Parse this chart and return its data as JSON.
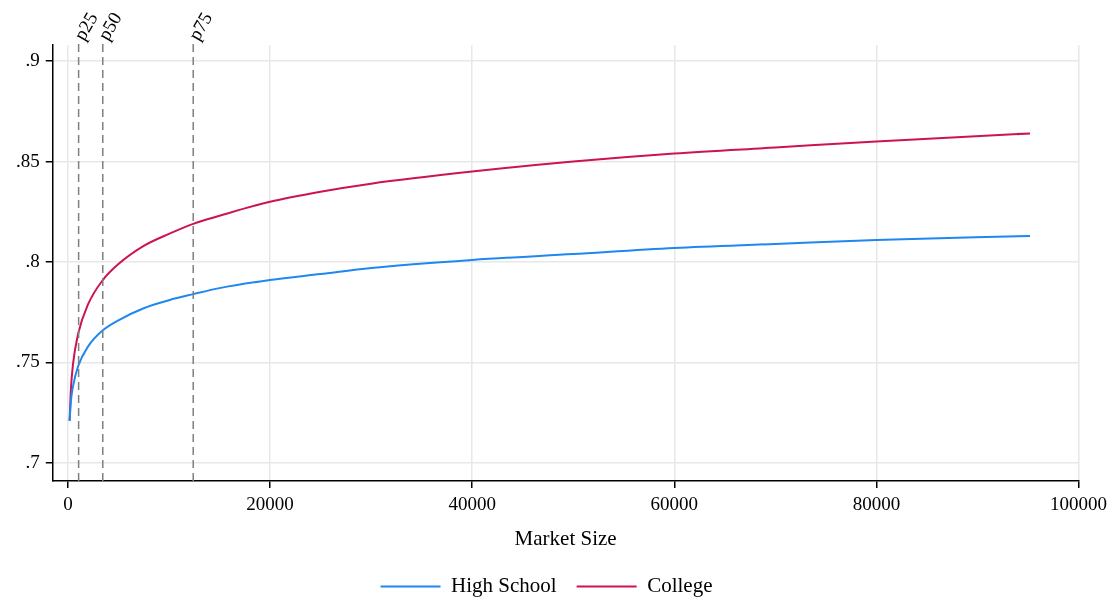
{
  "chart_data": {
    "type": "line",
    "xlabel": "Market Size",
    "x": [
      170,
      300,
      500,
      1000,
      2000,
      3450,
      5000,
      7500,
      10000,
      12400,
      15000,
      20000,
      25000,
      30000,
      40000,
      50000,
      60000,
      70000,
      80000,
      95200
    ],
    "series": [
      {
        "name": "High School",
        "color": "#1e88f0",
        "values": [
          0.721,
          0.731,
          0.738,
          0.748,
          0.758,
          0.766,
          0.771,
          0.777,
          0.781,
          0.784,
          0.787,
          0.791,
          0.794,
          0.797,
          0.801,
          0.804,
          0.807,
          0.809,
          0.811,
          0.813
        ]
      },
      {
        "name": "College",
        "color": "#cc1450",
        "values": [
          0.721,
          0.737,
          0.749,
          0.764,
          0.779,
          0.791,
          0.799,
          0.808,
          0.814,
          0.819,
          0.823,
          0.83,
          0.835,
          0.839,
          0.845,
          0.85,
          0.854,
          0.857,
          0.86,
          0.864
        ]
      }
    ],
    "xlim": [
      -1500,
      100000
    ],
    "xticks": [
      0,
      20000,
      40000,
      60000,
      80000,
      100000
    ],
    "ylim": [
      0.691,
      0.908
    ],
    "yticks": [
      {
        "value": 0.7,
        "label": ".7"
      },
      {
        "value": 0.75,
        "label": ".75"
      },
      {
        "value": 0.8,
        "label": ".8"
      },
      {
        "value": 0.85,
        "label": ".85"
      },
      {
        "value": 0.9,
        "label": ".9"
      }
    ],
    "ref_lines": [
      {
        "axis": "x",
        "value": 1060,
        "label": "p25",
        "color": "#808080",
        "line_style": "dashed"
      },
      {
        "axis": "x",
        "value": 3450,
        "label": "p50",
        "color": "#808080",
        "line_style": "dashed"
      },
      {
        "axis": "x",
        "value": 12400,
        "label": "p75",
        "color": "#808080",
        "line_style": "dashed"
      }
    ],
    "grid": true,
    "legend": "bottom",
    "marker": "none",
    "line_style": "solid"
  }
}
